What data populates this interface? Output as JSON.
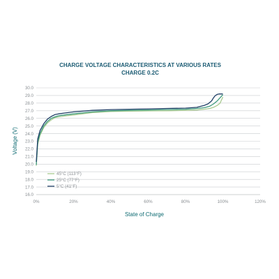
{
  "chart_data": {
    "type": "line",
    "title": "CHARGE VOLTAGE CHARACTERISTICS AT VARIOUS RATES",
    "subtitle": "CHARGE 0.2C",
    "xlabel": "State of Charge",
    "ylabel": "Voltage (V)",
    "xlim": [
      0,
      120
    ],
    "ylim": [
      16.0,
      30.0
    ],
    "xticks": [
      0,
      20,
      40,
      60,
      80,
      100,
      120
    ],
    "xtick_labels": [
      "0%",
      "20%",
      "40%",
      "60%",
      "80%",
      "100%",
      "120%"
    ],
    "yticks": [
      16.0,
      17.0,
      18.0,
      19.0,
      20.0,
      21.0,
      22.0,
      23.0,
      24.0,
      25.0,
      26.0,
      27.0,
      28.0,
      29.0,
      30.0
    ],
    "ytick_labels": [
      "16.0",
      "17.0",
      "18.0",
      "19.0",
      "20.0",
      "21.0",
      "22.0",
      "23.0",
      "24.0",
      "25.0",
      "26.0",
      "27.0",
      "28.0",
      "29.0",
      "30.0"
    ],
    "grid": "horizontal",
    "legend_position": "bottom-left",
    "series": [
      {
        "name": "45°C (113°F)",
        "color": "#a8c98f",
        "x": [
          0,
          0.8,
          2,
          4,
          6,
          8,
          10,
          12,
          15,
          20,
          30,
          40,
          50,
          60,
          70,
          80,
          86,
          90,
          93,
          95,
          97,
          98.5,
          100
        ],
        "y": [
          19.8,
          22.6,
          23.8,
          24.8,
          25.4,
          25.8,
          26.1,
          26.2,
          26.3,
          26.45,
          26.75,
          26.9,
          26.95,
          26.98,
          27.0,
          27.05,
          27.1,
          27.2,
          27.3,
          27.45,
          27.7,
          28.0,
          28.8
        ]
      },
      {
        "name": "25°C (77°F)",
        "color": "#3f9a7e",
        "x": [
          0,
          0.8,
          2,
          4,
          6,
          8,
          10,
          12,
          15,
          20,
          30,
          40,
          50,
          60,
          70,
          80,
          86,
          90,
          93,
          95,
          97,
          98.5,
          100
        ],
        "y": [
          19.9,
          22.9,
          24.0,
          25.0,
          25.6,
          26.0,
          26.2,
          26.35,
          26.45,
          26.6,
          26.85,
          27.0,
          27.05,
          27.1,
          27.15,
          27.2,
          27.3,
          27.4,
          27.6,
          27.9,
          28.3,
          28.7,
          29.1
        ]
      },
      {
        "name": "5°C (41°F)",
        "color": "#1f3f66",
        "x": [
          0,
          0.8,
          2,
          4,
          6,
          8,
          10,
          12,
          15,
          20,
          30,
          40,
          50,
          60,
          70,
          80,
          86,
          90,
          92,
          94,
          95,
          96,
          97,
          98,
          99,
          100
        ],
        "y": [
          20.3,
          23.3,
          24.4,
          25.3,
          25.9,
          26.25,
          26.5,
          26.6,
          26.7,
          26.85,
          27.05,
          27.15,
          27.2,
          27.25,
          27.3,
          27.35,
          27.45,
          27.7,
          27.9,
          28.3,
          28.7,
          29.0,
          29.15,
          29.2,
          29.2,
          29.2
        ]
      }
    ]
  }
}
